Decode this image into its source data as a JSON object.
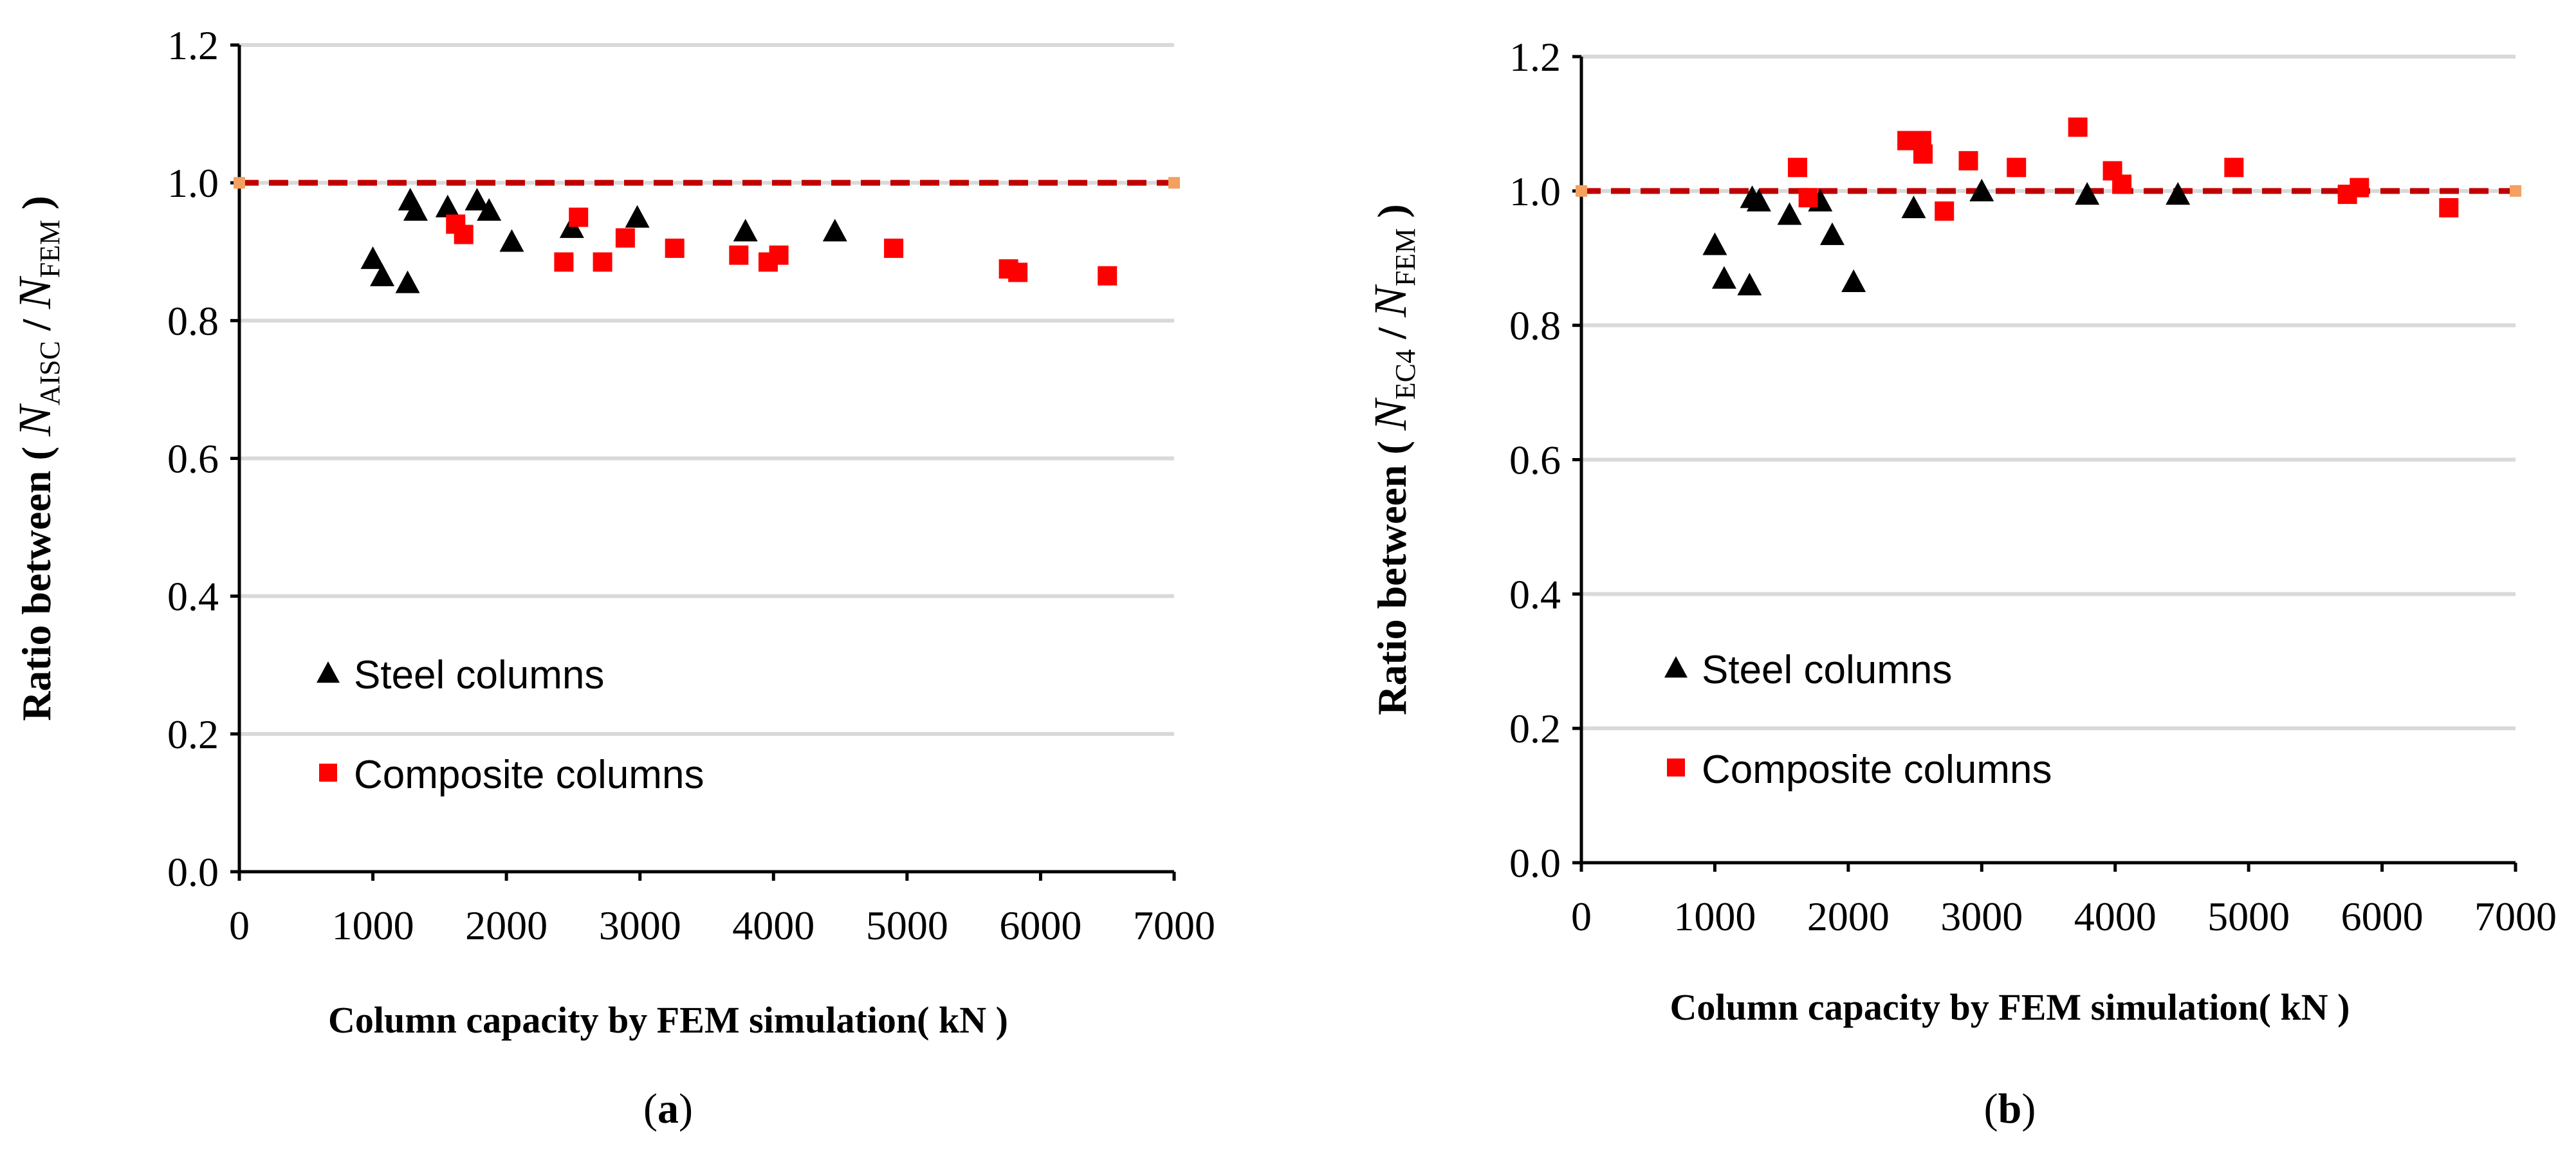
{
  "chart_data": [
    {
      "type": "scatter",
      "panel": "a",
      "caption_open": "(",
      "caption_letter": "a",
      "caption_close": ")",
      "ylabel_prefix": "Ratio between ( ",
      "ylabel_num": "N",
      "ylabel_num_sub": "AISC",
      "ylabel_slash": " / ",
      "ylabel_den": "N",
      "ylabel_den_sub": "FEM",
      "ylabel_suffix": " )",
      "xlabel": "Column capacity by FEM simulation( kN )",
      "xlim": [
        0,
        7000
      ],
      "ylim": [
        0.0,
        1.2
      ],
      "xticks": [
        "0",
        "1000",
        "2000",
        "3000",
        "4000",
        "5000",
        "6000",
        "7000"
      ],
      "yticks": [
        "0.0",
        "0.2",
        "0.4",
        "0.6",
        "0.8",
        "1.0",
        "1.2"
      ],
      "grid": "horizontal",
      "reference_line": {
        "y": 1.0,
        "x": [
          0,
          7000
        ],
        "style": "dashed",
        "color": "#c00000"
      },
      "series": [
        {
          "name": "Steel columns",
          "marker": "triangle",
          "color": "#000000",
          "points": [
            [
              1000,
              0.89
            ],
            [
              1070,
              0.865
            ],
            [
              1260,
              0.855
            ],
            [
              1280,
              0.975
            ],
            [
              1320,
              0.96
            ],
            [
              1560,
              0.965
            ],
            [
              1780,
              0.975
            ],
            [
              1870,
              0.96
            ],
            [
              2040,
              0.915
            ],
            [
              2490,
              0.935
            ],
            [
              2980,
              0.95
            ],
            [
              3790,
              0.93
            ],
            [
              4460,
              0.93
            ]
          ]
        },
        {
          "name": "Composite columns",
          "marker": "square",
          "color": "#ff0000",
          "points": [
            [
              1620,
              0.94
            ],
            [
              1680,
              0.925
            ],
            [
              2430,
              0.885
            ],
            [
              2540,
              0.95
            ],
            [
              2720,
              0.885
            ],
            [
              2890,
              0.92
            ],
            [
              3260,
              0.905
            ],
            [
              3740,
              0.895
            ],
            [
              3960,
              0.885
            ],
            [
              4040,
              0.895
            ],
            [
              4900,
              0.905
            ],
            [
              5760,
              0.875
            ],
            [
              5830,
              0.87
            ],
            [
              6500,
              0.865
            ]
          ]
        }
      ],
      "legend_position": "lower-left"
    },
    {
      "type": "scatter",
      "panel": "b",
      "caption_open": "(",
      "caption_letter": "b",
      "caption_close": ")",
      "ylabel_prefix": "Ratio between ( ",
      "ylabel_num": "N",
      "ylabel_num_sub": "EC4",
      "ylabel_slash": " / ",
      "ylabel_den": "N",
      "ylabel_den_sub": "FEM",
      "ylabel_suffix": " )",
      "xlabel": "Column capacity by FEM simulation( kN )",
      "xlim": [
        0,
        7000
      ],
      "ylim": [
        0.0,
        1.2
      ],
      "xticks": [
        "0",
        "1000",
        "2000",
        "3000",
        "4000",
        "5000",
        "6000",
        "7000"
      ],
      "yticks": [
        "0.0",
        "0.2",
        "0.4",
        "0.6",
        "0.8",
        "1.0",
        "1.2"
      ],
      "grid": "horizontal",
      "reference_line": {
        "y": 1.0,
        "x": [
          0,
          7000
        ],
        "style": "dashed",
        "color": "#c00000"
      },
      "series": [
        {
          "name": "Steel columns",
          "marker": "triangle",
          "color": "#000000",
          "points": [
            [
              1000,
              0.92
            ],
            [
              1070,
              0.87
            ],
            [
              1260,
              0.86
            ],
            [
              1280,
              0.99
            ],
            [
              1330,
              0.985
            ],
            [
              1560,
              0.965
            ],
            [
              1790,
              0.985
            ],
            [
              1880,
              0.935
            ],
            [
              2040,
              0.865
            ],
            [
              2490,
              0.975
            ],
            [
              3000,
              1.0
            ],
            [
              3790,
              0.995
            ],
            [
              4470,
              0.995
            ]
          ]
        },
        {
          "name": "Composite columns",
          "marker": "square",
          "color": "#ff0000",
          "points": [
            [
              1620,
              1.035
            ],
            [
              1700,
              0.99
            ],
            [
              2440,
              1.075
            ],
            [
              2550,
              1.075
            ],
            [
              2560,
              1.055
            ],
            [
              2720,
              0.97
            ],
            [
              2900,
              1.045
            ],
            [
              3260,
              1.035
            ],
            [
              3720,
              1.095
            ],
            [
              3980,
              1.03
            ],
            [
              4050,
              1.01
            ],
            [
              4890,
              1.035
            ],
            [
              5740,
              0.995
            ],
            [
              5830,
              1.005
            ],
            [
              6500,
              0.975
            ]
          ]
        }
      ],
      "legend_position": "lower-left"
    }
  ]
}
